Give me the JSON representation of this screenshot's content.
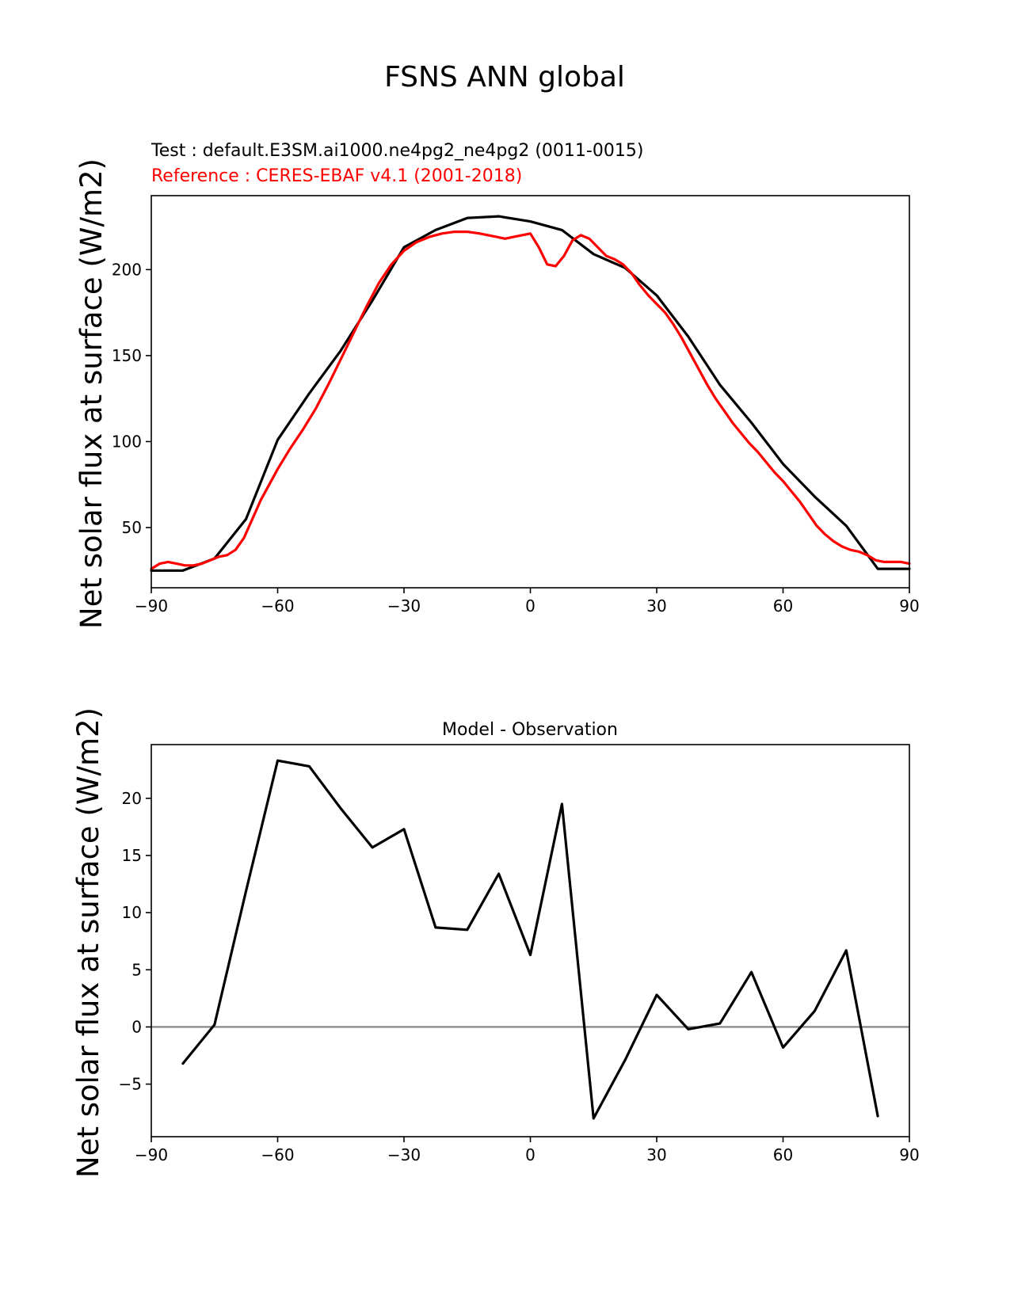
{
  "figure": {
    "title": "FSNS ANN global"
  },
  "chart_data": [
    {
      "type": "line",
      "test_label": "Test : default.E3SM.ai1000.ne4pg2_ne4pg2 (0011-0015)",
      "reference_label": "Reference : CERES-EBAF v4.1 (2001-2018)",
      "ylabel": "Net solar flux at surface (W/m2)",
      "xlim": [
        -90,
        90
      ],
      "ylim": [
        15,
        243
      ],
      "xticks": [
        -90,
        -60,
        -30,
        0,
        30,
        60,
        90
      ],
      "xtick_labels": [
        "−90",
        "−60",
        "−30",
        "0",
        "30",
        "60",
        "90"
      ],
      "yticks": [
        50,
        100,
        150,
        200
      ],
      "ytick_labels": [
        "50",
        "100",
        "150",
        "200"
      ],
      "grid": false,
      "series": [
        {
          "color": "#000000",
          "x": [
            -90,
            -82.5,
            -75,
            -67.5,
            -60,
            -52.5,
            -45,
            -37.5,
            -30,
            -22.5,
            -15,
            -7.5,
            0,
            7.5,
            15,
            22.5,
            30,
            37.5,
            45,
            52.5,
            60,
            67.5,
            75,
            82.5,
            90
          ],
          "y": [
            25,
            25,
            32,
            55,
            101,
            128,
            153,
            182,
            213,
            223,
            230,
            231,
            228,
            223,
            209,
            201,
            185,
            161,
            133,
            111,
            87,
            68,
            51,
            26,
            26
          ]
        },
        {
          "color": "#ff0000",
          "x": [
            -90,
            -88,
            -86,
            -84,
            -82,
            -80,
            -78,
            -76,
            -74,
            -72,
            -70,
            -68,
            -66,
            -64,
            -62,
            -60,
            -57,
            -54,
            -51,
            -48,
            -45,
            -42,
            -39,
            -36,
            -33,
            -30,
            -27,
            -24,
            -21,
            -18,
            -15,
            -12,
            -10,
            -8,
            -6,
            -4,
            -2,
            0,
            2,
            4,
            6,
            8,
            10,
            12,
            14,
            16,
            18,
            20,
            22,
            24,
            26,
            28,
            30,
            32,
            34,
            36,
            38,
            40,
            42,
            44,
            46,
            48,
            50,
            52,
            54,
            56,
            58,
            60,
            62,
            64,
            66,
            68,
            70,
            72,
            74,
            76,
            78,
            80,
            82,
            84,
            86,
            88,
            90
          ],
          "y": [
            26,
            29,
            30,
            29,
            28,
            28,
            29,
            31,
            33,
            34,
            37,
            44,
            55,
            66,
            75,
            84,
            96,
            107,
            119,
            133,
            148,
            163,
            178,
            192,
            203,
            211,
            216,
            219,
            221,
            222,
            222,
            221,
            220,
            219,
            218,
            219,
            220,
            221,
            213,
            203,
            202,
            208,
            217,
            220,
            218,
            213,
            208,
            206,
            203,
            198,
            191,
            185,
            180,
            175,
            168,
            160,
            151,
            142,
            133,
            125,
            118,
            111,
            105,
            99,
            94,
            88,
            82,
            77,
            71,
            65,
            58,
            51,
            46,
            42,
            39,
            37,
            36,
            34,
            31,
            30,
            30,
            30,
            29
          ]
        }
      ]
    },
    {
      "type": "line",
      "title": "Model - Observation",
      "ylabel": "Net solar flux at surface (W/m2)",
      "xlim": [
        -90,
        90
      ],
      "ylim": [
        -9.6,
        24.7
      ],
      "xticks": [
        -90,
        -60,
        -30,
        0,
        30,
        60,
        90
      ],
      "xtick_labels": [
        "−90",
        "−60",
        "−30",
        "0",
        "30",
        "60",
        "90"
      ],
      "yticks": [
        -5,
        0,
        5,
        10,
        15,
        20
      ],
      "ytick_labels": [
        "−5",
        "0",
        "5",
        "10",
        "15",
        "20"
      ],
      "grid": false,
      "zero_line_color": "#808080",
      "series": [
        {
          "color": "#000000",
          "x": [
            -82.5,
            -75,
            -67.5,
            -60,
            -52.5,
            -45,
            -37.5,
            -30,
            -22.5,
            -15,
            -7.5,
            0,
            7.5,
            15,
            22.5,
            30,
            37.5,
            45,
            52.5,
            60,
            67.5,
            75,
            82.5
          ],
          "y": [
            -3.2,
            0.2,
            11.9,
            23.3,
            22.8,
            19.1,
            15.7,
            17.3,
            8.7,
            8.5,
            13.4,
            6.3,
            19.5,
            -8.0,
            -2.9,
            2.8,
            -0.2,
            0.3,
            4.8,
            -1.8,
            1.4,
            6.7,
            -7.8
          ]
        }
      ]
    }
  ]
}
